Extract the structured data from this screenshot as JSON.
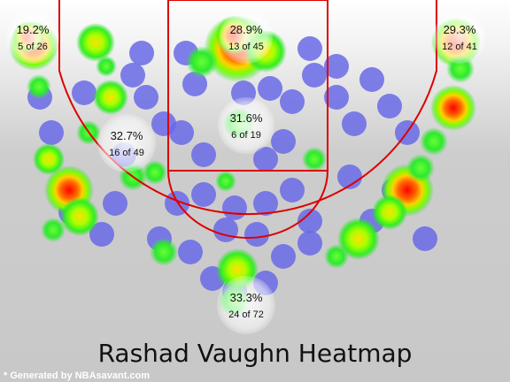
{
  "chart_data": {
    "type": "heatmap",
    "title": "Rashad Vaughn Heatmap",
    "footnote": "* Generated by NBAsavant.com",
    "zones": [
      {
        "pct": "19.2%",
        "made_of": "5 of 26"
      },
      {
        "pct": "28.9%",
        "made_of": "13 of 45"
      },
      {
        "pct": "29.3%",
        "made_of": "12 of 41"
      },
      {
        "pct": "31.6%",
        "made_of": "6 of 19"
      },
      {
        "pct": "32.7%",
        "made_of": "16 of 49"
      },
      {
        "pct": "33.3%",
        "made_of": "24 of 72"
      }
    ]
  }
}
